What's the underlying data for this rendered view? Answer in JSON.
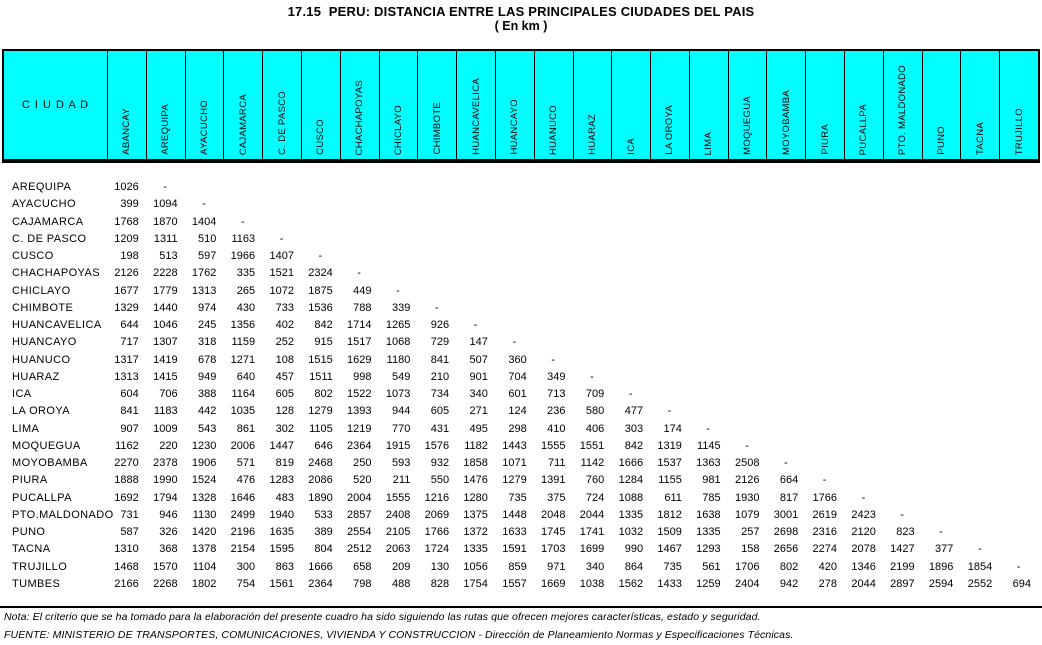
{
  "title": "17.15  PERU: DISTANCIA ENTRE LAS PRINCIPALES CIUDADES DEL PAIS",
  "subtitle": "( En km )",
  "header": {
    "corner_label": "C I U D A D"
  },
  "colors": {
    "header_bg": "#00FFFF",
    "border": "#000000",
    "text": "#000000",
    "page_bg": "#FFFFFF"
  },
  "table": {
    "columns": [
      "ABANCAY",
      "AREQUIPA",
      "AYACUCHO",
      "CAJAMARCA",
      "C. DE PASCO",
      "CUSCO",
      "CHACHAPOYAS",
      "CHICLAYO",
      "CHIMBOTE",
      "HUANCAVELICA",
      "HUANCAYO",
      "HUANUCO",
      "HUARAZ",
      "ICA",
      "LA OROYA",
      "LIMA",
      "MOQUEGUA",
      "MOYOBAMBA",
      "PIURA",
      "PUCALLPA",
      "PTO. MALDONADO",
      "PUNO",
      "TACNA",
      "TRUJILLO"
    ],
    "rows": [
      {
        "label": "AREQUIPA",
        "values": [
          "1026",
          "-"
        ]
      },
      {
        "label": "AYACUCHO",
        "values": [
          "399",
          "1094",
          "-"
        ]
      },
      {
        "label": "CAJAMARCA",
        "values": [
          "1768",
          "1870",
          "1404",
          "-"
        ]
      },
      {
        "label": "C. DE PASCO",
        "values": [
          "1209",
          "1311",
          "510",
          "1163",
          "-"
        ]
      },
      {
        "label": "CUSCO",
        "values": [
          "198",
          "513",
          "597",
          "1966",
          "1407",
          "-"
        ]
      },
      {
        "label": "CHACHAPOYAS",
        "values": [
          "2126",
          "2228",
          "1762",
          "335",
          "1521",
          "2324",
          "-"
        ]
      },
      {
        "label": "CHICLAYO",
        "values": [
          "1677",
          "1779",
          "1313",
          "265",
          "1072",
          "1875",
          "449",
          "-"
        ]
      },
      {
        "label": "CHIMBOTE",
        "values": [
          "1329",
          "1440",
          "974",
          "430",
          "733",
          "1536",
          "788",
          "339",
          "-"
        ]
      },
      {
        "label": "HUANCAVELICA",
        "values": [
          "644",
          "1046",
          "245",
          "1356",
          "402",
          "842",
          "1714",
          "1265",
          "926",
          "-"
        ]
      },
      {
        "label": "HUANCAYO",
        "values": [
          "717",
          "1307",
          "318",
          "1159",
          "252",
          "915",
          "1517",
          "1068",
          "729",
          "147",
          "-"
        ]
      },
      {
        "label": "HUANUCO",
        "values": [
          "1317",
          "1419",
          "678",
          "1271",
          "108",
          "1515",
          "1629",
          "1180",
          "841",
          "507",
          "360",
          "-"
        ]
      },
      {
        "label": "HUARAZ",
        "values": [
          "1313",
          "1415",
          "949",
          "640",
          "457",
          "1511",
          "998",
          "549",
          "210",
          "901",
          "704",
          "349",
          "-"
        ]
      },
      {
        "label": "ICA",
        "values": [
          "604",
          "706",
          "388",
          "1164",
          "605",
          "802",
          "1522",
          "1073",
          "734",
          "340",
          "601",
          "713",
          "709",
          "-"
        ]
      },
      {
        "label": "LA OROYA",
        "values": [
          "841",
          "1183",
          "442",
          "1035",
          "128",
          "1279",
          "1393",
          "944",
          "605",
          "271",
          "124",
          "236",
          "580",
          "477",
          "-"
        ]
      },
      {
        "label": "LIMA",
        "values": [
          "907",
          "1009",
          "543",
          "861",
          "302",
          "1105",
          "1219",
          "770",
          "431",
          "495",
          "298",
          "410",
          "406",
          "303",
          "174",
          "-"
        ]
      },
      {
        "label": "MOQUEGUA",
        "values": [
          "1162",
          "220",
          "1230",
          "2006",
          "1447",
          "646",
          "2364",
          "1915",
          "1576",
          "1182",
          "1443",
          "1555",
          "1551",
          "842",
          "1319",
          "1145",
          "-"
        ]
      },
      {
        "label": "MOYOBAMBA",
        "values": [
          "2270",
          "2378",
          "1906",
          "571",
          "819",
          "2468",
          "250",
          "593",
          "932",
          "1858",
          "1071",
          "711",
          "1142",
          "1666",
          "1537",
          "1363",
          "2508",
          "-"
        ]
      },
      {
        "label": "PIURA",
        "values": [
          "1888",
          "1990",
          "1524",
          "476",
          "1283",
          "2086",
          "520",
          "211",
          "550",
          "1476",
          "1279",
          "1391",
          "760",
          "1284",
          "1155",
          "981",
          "2126",
          "664",
          "-"
        ]
      },
      {
        "label": "PUCALLPA",
        "values": [
          "1692",
          "1794",
          "1328",
          "1646",
          "483",
          "1890",
          "2004",
          "1555",
          "1216",
          "1280",
          "735",
          "375",
          "724",
          "1088",
          "611",
          "785",
          "1930",
          "817",
          "1766",
          "-"
        ]
      },
      {
        "label": "PTO.MALDONADO",
        "values": [
          "731",
          "946",
          "1130",
          "2499",
          "1940",
          "533",
          "2857",
          "2408",
          "2069",
          "1375",
          "1448",
          "2048",
          "2044",
          "1335",
          "1812",
          "1638",
          "1079",
          "3001",
          "2619",
          "2423",
          "-"
        ]
      },
      {
        "label": "PUNO",
        "values": [
          "587",
          "326",
          "1420",
          "2196",
          "1635",
          "389",
          "2554",
          "2105",
          "1766",
          "1372",
          "1633",
          "1745",
          "1741",
          "1032",
          "1509",
          "1335",
          "257",
          "2698",
          "2316",
          "2120",
          "823",
          "-"
        ]
      },
      {
        "label": "TACNA",
        "values": [
          "1310",
          "368",
          "1378",
          "2154",
          "1595",
          "804",
          "2512",
          "2063",
          "1724",
          "1335",
          "1591",
          "1703",
          "1699",
          "990",
          "1467",
          "1293",
          "158",
          "2656",
          "2274",
          "2078",
          "1427",
          "377",
          "-"
        ]
      },
      {
        "label": "TRUJILLO",
        "values": [
          "1468",
          "1570",
          "1104",
          "300",
          "863",
          "1666",
          "658",
          "209",
          "130",
          "1056",
          "859",
          "971",
          "340",
          "864",
          "735",
          "561",
          "1706",
          "802",
          "420",
          "1346",
          "2199",
          "1896",
          "1854",
          "-"
        ]
      },
      {
        "label": "TUMBES",
        "values": [
          "2166",
          "2268",
          "1802",
          "754",
          "1561",
          "2364",
          "798",
          "488",
          "828",
          "1754",
          "1557",
          "1669",
          "1038",
          "1562",
          "1433",
          "1259",
          "2404",
          "942",
          "278",
          "2044",
          "2897",
          "2594",
          "2552",
          "694"
        ]
      }
    ]
  },
  "notes": {
    "nota": "Nota: El criterio que se ha tomado para la elaboración del presente cuadro ha sido siguiendo las rutas que ofrecen mejores características, estado y seguridad.",
    "fuente": "FUENTE: MINISTERIO DE TRANSPORTES, COMUNICACIONES, VIVIENDA Y CONSTRUCCION - Dirección de Planeamiento Normas y Especificaciones Técnicas."
  }
}
